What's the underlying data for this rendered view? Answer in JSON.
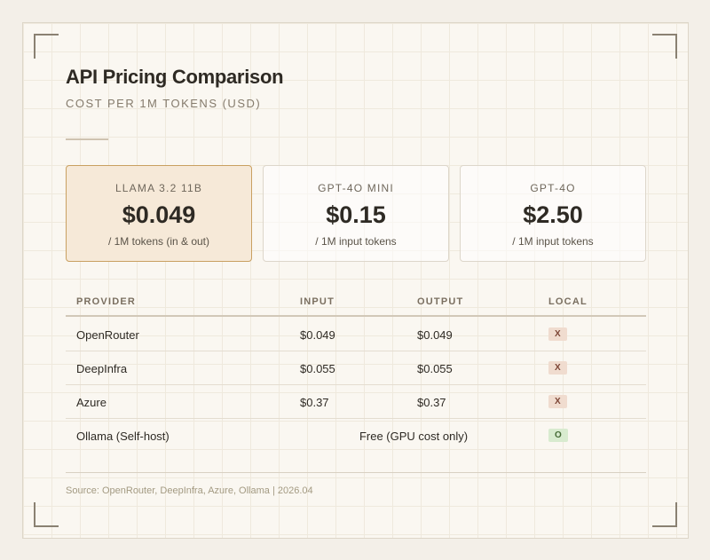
{
  "header": {
    "title": "API Pricing Comparison",
    "subtitle": "COST PER 1M TOKENS (USD)"
  },
  "cards": [
    {
      "label": "LLAMA 3.2 11B",
      "price": "$0.049",
      "note": "/ 1M tokens (in & out)"
    },
    {
      "label": "GPT-4O MINI",
      "price": "$0.15",
      "note": "/ 1M input tokens"
    },
    {
      "label": "GPT-4O",
      "price": "$2.50",
      "note": "/ 1M input tokens"
    }
  ],
  "table": {
    "columns": [
      "PROVIDER",
      "INPUT",
      "OUTPUT",
      "LOCAL"
    ],
    "rows": [
      [
        "OpenRouter",
        "$0.049",
        "$0.049",
        "X"
      ],
      [
        "DeepInfra",
        "$0.055",
        "$0.055",
        "X"
      ],
      [
        "Azure",
        "$0.37",
        "$0.37",
        "X"
      ],
      [
        "Ollama (Self-host)",
        "Free (GPU cost only)",
        "O"
      ]
    ]
  },
  "footer": {
    "source": "Source: OpenRouter, DeepInfra, Azure, Ollama | 2026.04"
  }
}
